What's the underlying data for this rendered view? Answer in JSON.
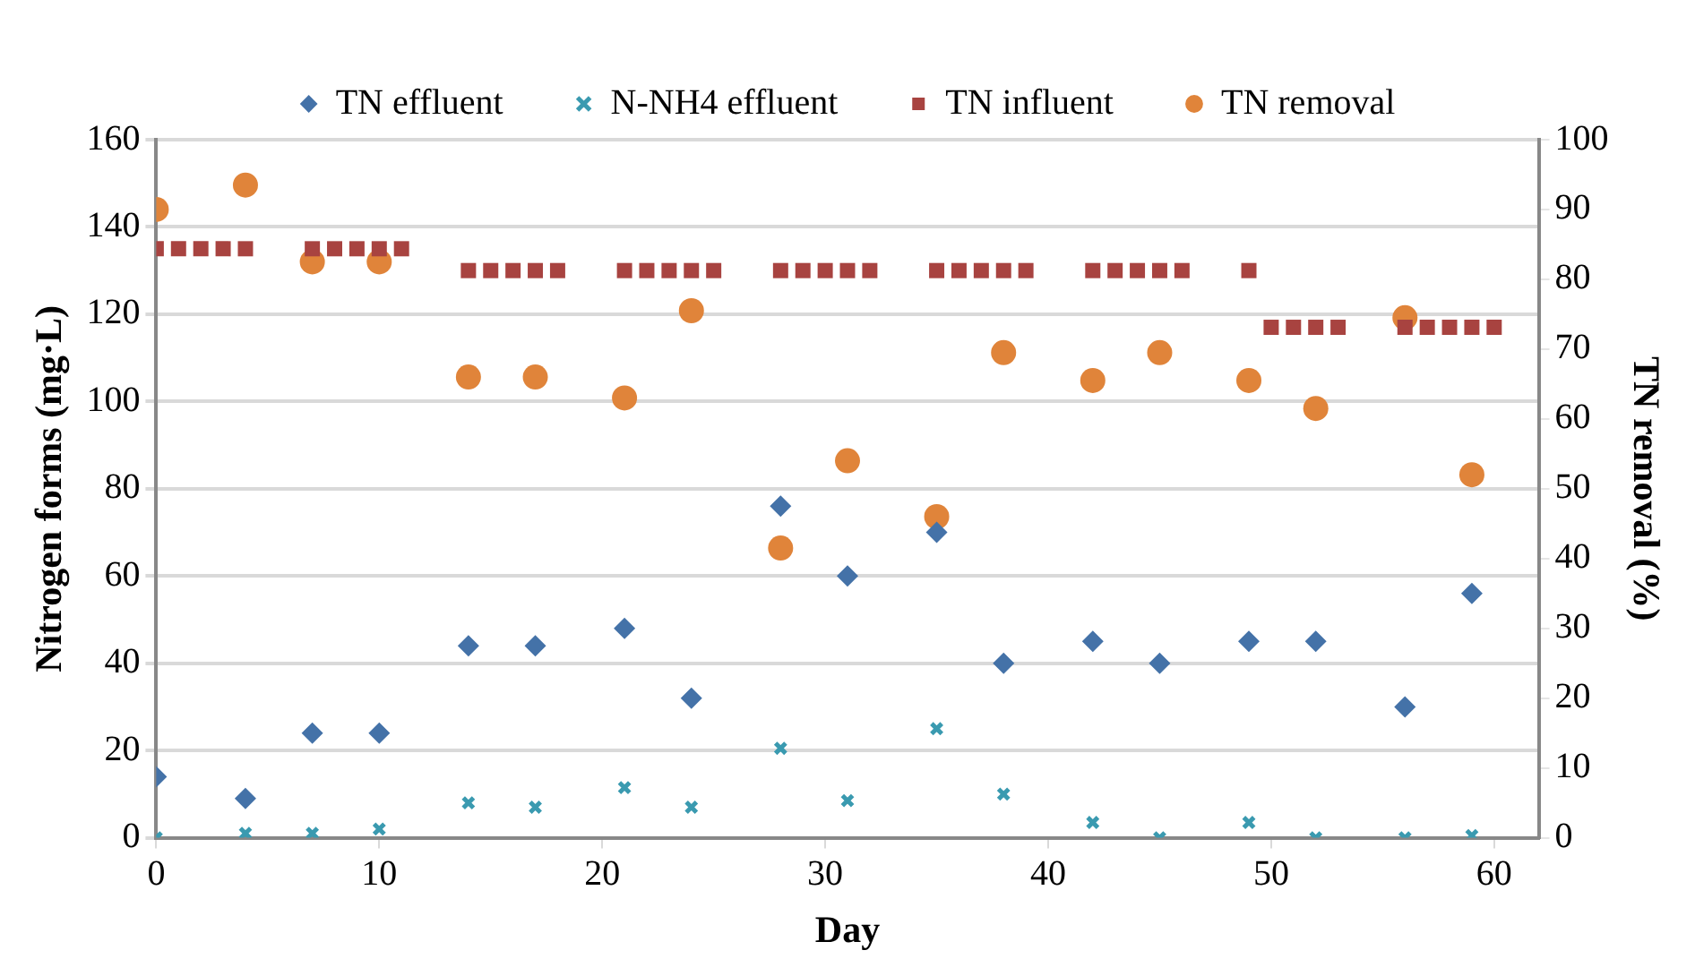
{
  "chart_data": {
    "type": "scatter",
    "xlabel": "Day",
    "ylabel": "Nitrogen forms (mg·L)",
    "y2label": "TN removal (%)",
    "xlim": [
      0,
      62
    ],
    "xticks": [
      0,
      10,
      20,
      30,
      40,
      50,
      60
    ],
    "ylim": [
      0,
      160
    ],
    "yticks": [
      0,
      20,
      40,
      60,
      80,
      100,
      120,
      140,
      160
    ],
    "y2lim": [
      0,
      100
    ],
    "y2ticks": [
      0,
      10,
      20,
      30,
      40,
      50,
      60,
      70,
      80,
      90,
      100
    ],
    "grid": "y",
    "legend": "top",
    "series": [
      {
        "name": "TN effluent",
        "color": "#4472a8",
        "marker": "diamond",
        "x": [
          0,
          4,
          7,
          10,
          14,
          17,
          21,
          24,
          28,
          31,
          35,
          38,
          42,
          45,
          49,
          52,
          56,
          59
        ],
        "values": [
          14,
          9,
          24,
          24,
          44,
          44,
          48,
          32,
          76,
          60,
          70,
          40,
          45,
          40,
          45,
          45,
          30,
          56
        ]
      },
      {
        "name": "N-NH4 effluent",
        "color": "#3a9ab0",
        "marker": "cross",
        "x": [
          0,
          4,
          7,
          10,
          14,
          17,
          21,
          24,
          28,
          31,
          35,
          38,
          42,
          45,
          49,
          52,
          56,
          59
        ],
        "values": [
          0,
          1,
          1,
          2,
          8,
          7,
          11.5,
          7,
          20.5,
          8.5,
          25,
          10,
          3.5,
          0,
          3.5,
          0,
          0,
          0.5
        ]
      },
      {
        "name": "TN influent",
        "color": "#a84340",
        "marker": "square",
        "x": [
          0,
          1,
          2,
          3,
          4,
          7,
          8,
          9,
          10,
          11,
          14,
          15,
          16,
          17,
          18,
          21,
          22,
          23,
          24,
          25,
          28,
          29,
          30,
          31,
          32,
          35,
          36,
          37,
          38,
          39,
          42,
          43,
          44,
          45,
          46,
          49,
          50,
          51,
          52,
          53,
          56,
          57,
          58,
          59,
          60
        ],
        "values": [
          135,
          135,
          135,
          135,
          135,
          135,
          135,
          135,
          135,
          135,
          130,
          130,
          130,
          130,
          130,
          130,
          130,
          130,
          130,
          130,
          130,
          130,
          130,
          130,
          130,
          130,
          130,
          130,
          130,
          130,
          130,
          130,
          130,
          130,
          130,
          130,
          117,
          117,
          117,
          117,
          117,
          117,
          117,
          117,
          117
        ]
      },
      {
        "name": "TN removal",
        "color": "#e0843a",
        "marker": "circle",
        "axis": "y2",
        "x": [
          0,
          4,
          7,
          10,
          14,
          17,
          21,
          24,
          28,
          31,
          35,
          38,
          42,
          45,
          49,
          52,
          56,
          59
        ],
        "values": [
          90,
          93.5,
          82.5,
          82.5,
          66,
          66,
          63,
          75.5,
          41.5,
          54,
          46,
          69.5,
          65.5,
          69.5,
          65.5,
          61.5,
          74.5,
          52
        ]
      }
    ]
  }
}
